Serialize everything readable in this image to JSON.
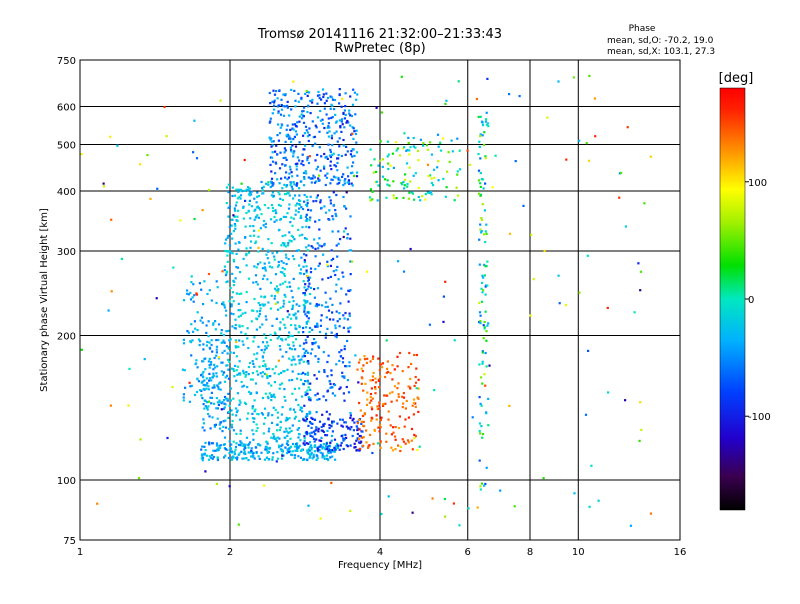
{
  "chart_data": {
    "type": "scatter",
    "title_line1": "Tromsø 20141116 21:32:00–21:33:43",
    "title_line2": "RwPretec (8p)",
    "phase_box": {
      "title": "Phase",
      "line_o": "mean, sd,O: -70.2, 19.0",
      "line_x": "mean, sd,X: 103.1, 27.3"
    },
    "xlabel": "Frequency [MHz]",
    "ylabel": "Stationary phase Virtual Height [km]",
    "x_scale": "log",
    "y_scale": "log",
    "xlim": [
      1,
      16
    ],
    "ylim": [
      75,
      750
    ],
    "x_ticks": [
      1,
      2,
      4,
      6,
      8,
      10,
      16
    ],
    "y_ticks": [
      75,
      100,
      200,
      300,
      400,
      500,
      600,
      750
    ],
    "x_gridlines": [
      2,
      4,
      6,
      8,
      10
    ],
    "y_gridlines": [
      100,
      200,
      300,
      400,
      500,
      600
    ],
    "grid": true,
    "colorbar": {
      "unit_label": "[deg]",
      "range": [
        -180,
        180
      ],
      "ticks": [
        100,
        0,
        -100
      ],
      "tick_labels": [
        "100",
        "0",
        "-100"
      ],
      "colormap": "rainbow (black-purple-blue-cyan-green-yellow-orange-red)"
    },
    "point_clusters": [
      {
        "name": "base trace",
        "freq": [
          1.75,
          3.3
        ],
        "height": [
          110,
          120
        ],
        "phase": [
          -70,
          -10
        ],
        "count": 260
      },
      {
        "name": "left edge",
        "freq": [
          1.75,
          2.0
        ],
        "height": [
          115,
          200
        ],
        "phase": [
          -80,
          -20
        ],
        "count": 110
      },
      {
        "name": "main column",
        "freq": [
          1.95,
          2.9
        ],
        "height": [
          120,
          420
        ],
        "phase": [
          -60,
          0
        ],
        "count": 780
      },
      {
        "name": "mid-left column",
        "freq": [
          1.6,
          1.95
        ],
        "height": [
          140,
          260
        ],
        "phase": [
          -70,
          -20
        ],
        "count": 120
      },
      {
        "name": "upper column",
        "freq": [
          2.4,
          3.6
        ],
        "height": [
          410,
          655
        ],
        "phase": [
          -110,
          -30
        ],
        "count": 380
      },
      {
        "name": "right column",
        "freq": [
          2.8,
          3.5
        ],
        "height": [
          120,
          400
        ],
        "phase": [
          -110,
          -40
        ],
        "count": 300
      },
      {
        "name": "low right",
        "freq": [
          2.8,
          3.7
        ],
        "height": [
          115,
          135
        ],
        "phase": [
          -120,
          -70
        ],
        "count": 120
      },
      {
        "name": "trace 4 MHz",
        "freq": [
          3.6,
          4.8
        ],
        "height": [
          115,
          185
        ],
        "phase": [
          120,
          170
        ],
        "count": 180
      },
      {
        "name": "echo 4-5 MHz",
        "freq": [
          3.8,
          5.8
        ],
        "height": [
          380,
          520
        ],
        "phase": [
          -60,
          100
        ],
        "count": 120
      },
      {
        "name": "column 6.3 MHz",
        "freq": [
          6.3,
          6.6
        ],
        "height": [
          95,
          620
        ],
        "phase": [
          -90,
          80
        ],
        "count": 110
      },
      {
        "name": "scatter",
        "freq": [
          1.0,
          14
        ],
        "height": [
          80,
          700
        ],
        "phase": [
          -140,
          170
        ],
        "count": 200
      }
    ],
    "points_extracted_sample": [
      [
        2.0,
        300,
        -20
      ],
      [
        2.5,
        250,
        -30
      ],
      [
        3.1,
        610,
        -90
      ],
      [
        4.2,
        130,
        150
      ],
      [
        5.0,
        430,
        90
      ],
      [
        6.4,
        330,
        -40
      ]
    ],
    "legend_placement": "colorbar right, phase summary top-right"
  }
}
